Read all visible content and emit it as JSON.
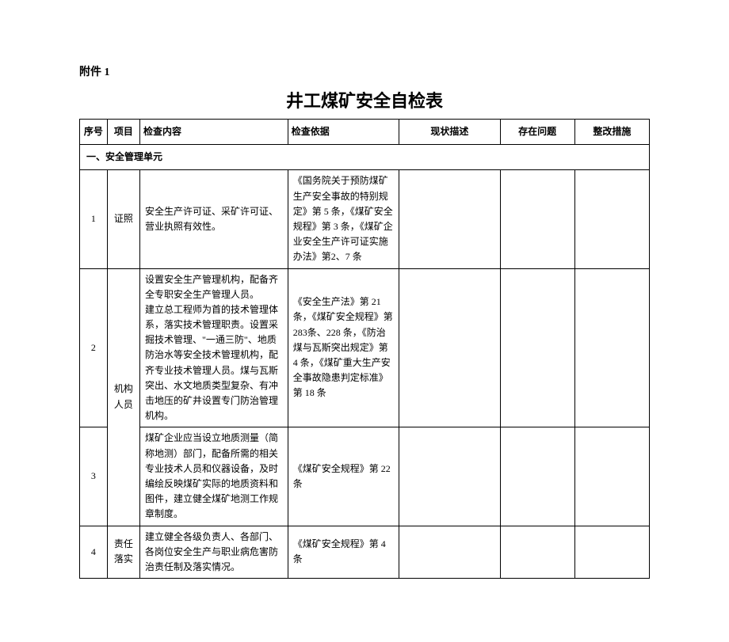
{
  "attachment_label": "附件 1",
  "title": "井工煤矿安全自检表",
  "columns": {
    "seq": "序号",
    "project": "项目",
    "content": "检查内容",
    "basis": "检查依据",
    "status": "现状描述",
    "problem": "存在问题",
    "measure": "整改措施"
  },
  "section1_title": "一、安全管理单元",
  "rows": {
    "r1": {
      "seq": "1",
      "project": "证照",
      "content": "安全生产许可证、采矿许可证、营业执照有效性。",
      "basis": "《国务院关于预防煤矿生产安全事故的特别规定》第 5 条，《煤矿安全规程》第 3 条，《煤矿企业安全生产许可证实施办法》第2、7 条"
    },
    "r2": {
      "seq": "2",
      "project": "机构人员",
      "content": "设置安全生产管理机构，配备齐全专职安全生产管理人员。\n建立总工程师为首的技术管理体系，落实技术管理职责。设置采掘技术管理、\"一通三防\"、地质防治水等安全技术管理机构，配齐专业技术管理人员。煤与瓦斯突出、水文地质类型复杂、有冲击地压的矿井设置专门防治管理机构。",
      "basis": "《安全生产法》第 21 条，《煤矿安全规程》第 283条、228 条，《防治煤与瓦斯突出规定》第 4 条，《煤矿重大生产安全事故隐患判定标准》第 18 条"
    },
    "r3": {
      "seq": "3",
      "content": "煤矿企业应当设立地质测量（简称地测）部门，配备所需的相关专业技术人员和仪器设备，及时编绘反映煤矿实际的地质资料和图件，建立健全煤矿地测工作规章制度。",
      "basis": "《煤矿安全规程》第 22条"
    },
    "r4": {
      "seq": "4",
      "project": "责任落实",
      "content": "建立健全各级负责人、各部门、各岗位安全生产与职业病危害防治责任制及落实情况。",
      "basis": "《煤矿安全规程》第 4 条"
    }
  }
}
